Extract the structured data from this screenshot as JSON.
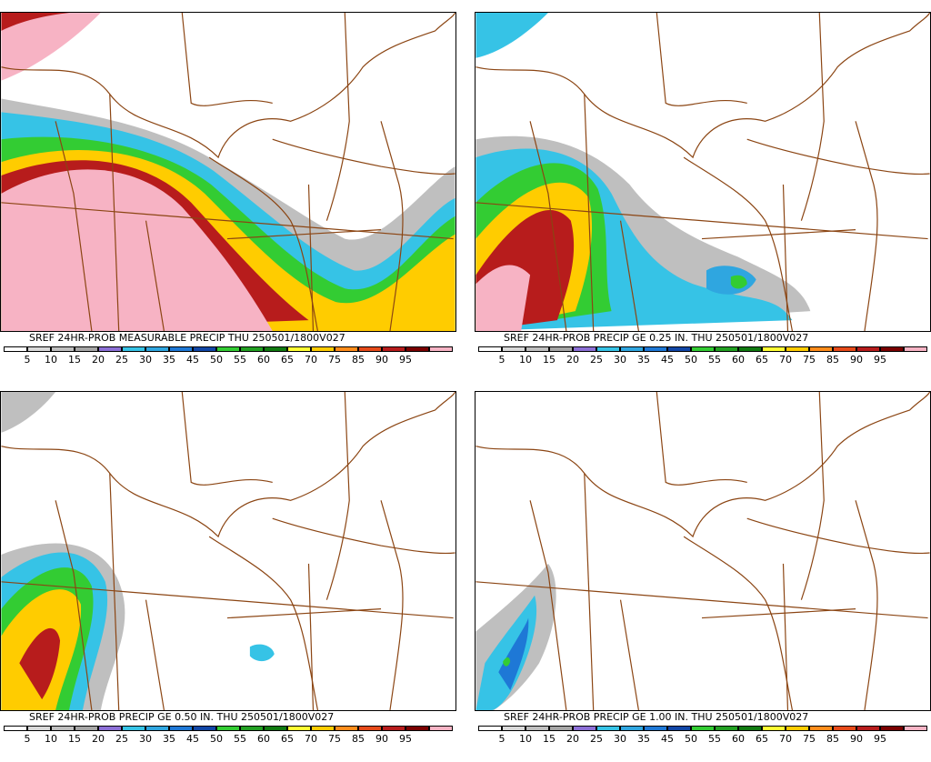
{
  "colors": {
    "border": "#8b4513",
    "scale": [
      "#ffffff",
      "#d9d9d9",
      "#bfbfbf",
      "#a6a6a6",
      "#8c6fd6",
      "#36c3e6",
      "#2fa6e0",
      "#1e78d6",
      "#1046a6",
      "#33cc33",
      "#22a022",
      "#0f7a0f",
      "#ffff33",
      "#ffcc00",
      "#ff8c1a",
      "#e64a19",
      "#b71c1c",
      "#7a0000",
      "#f7b3c4"
    ]
  },
  "panels": [
    {
      "title": "SREF 24HR-PROB MEASURABLE PRECIP THU 250501/1800V027",
      "field": "measurable"
    },
    {
      "title": "SREF 24HR-PROB PRECIP GE 0.25 IN. THU 250501/1800V027",
      "field": "ge025"
    },
    {
      "title": "SREF 24HR-PROB PRECIP GE 0.50 IN. THU 250501/1800V027",
      "field": "ge050"
    },
    {
      "title": "SREF 24HR-PROB PRECIP GE 1.00 IN. THU 250501/1800V027",
      "field": "ge100"
    }
  ],
  "scale_labels": [
    "5",
    "10",
    "15",
    "20",
    "25",
    "30",
    "35",
    "45",
    "50",
    "55",
    "60",
    "65",
    "70",
    "75",
    "85",
    "90",
    "95"
  ]
}
